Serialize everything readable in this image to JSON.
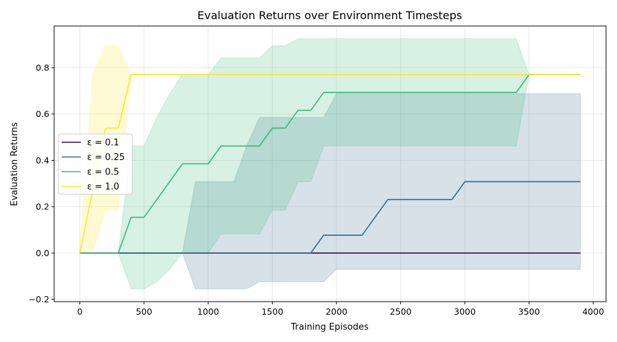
{
  "chart_data": {
    "type": "line",
    "title": "Evaluation Returns over Environment Timesteps",
    "xlabel": "Training Episodes",
    "ylabel": "Evaluation Returns",
    "xlim": [
      -200,
      4100
    ],
    "ylim": [
      -0.21,
      0.98
    ],
    "xticks": [
      0,
      500,
      1000,
      1500,
      2000,
      2500,
      3000,
      3500,
      4000
    ],
    "yticks": [
      -0.2,
      0.0,
      0.2,
      0.4,
      0.6,
      0.8
    ],
    "ytick_labels": [
      "−0.2",
      "0.0",
      "0.2",
      "0.4",
      "0.6",
      "0.8"
    ],
    "grid": true,
    "legend_position": "center-left",
    "x": [
      0,
      100,
      200,
      300,
      400,
      500,
      600,
      700,
      800,
      900,
      1000,
      1100,
      1200,
      1300,
      1400,
      1500,
      1600,
      1700,
      1800,
      1900,
      2000,
      2100,
      2200,
      2300,
      2400,
      2500,
      2600,
      2700,
      2800,
      2900,
      3000,
      3100,
      3200,
      3300,
      3400,
      3500,
      3600,
      3700,
      3800,
      3900
    ],
    "series": [
      {
        "name": "ε = 0.1",
        "color": "#440154",
        "values": [
          0,
          0,
          0,
          0,
          0,
          0,
          0,
          0,
          0,
          0,
          0,
          0,
          0,
          0,
          0,
          0,
          0,
          0,
          0,
          0,
          0,
          0,
          0,
          0,
          0,
          0,
          0,
          0,
          0,
          0,
          0,
          0,
          0,
          0,
          0,
          0,
          0,
          0,
          0,
          0
        ],
        "lower": [
          0,
          0,
          0,
          0,
          0,
          0,
          0,
          0,
          0,
          0,
          0,
          0,
          0,
          0,
          0,
          0,
          0,
          0,
          0,
          0,
          0,
          0,
          0,
          0,
          0,
          0,
          0,
          0,
          0,
          0,
          0,
          0,
          0,
          0,
          0,
          0,
          0,
          0,
          0,
          0
        ],
        "upper": [
          0,
          0,
          0,
          0,
          0,
          0,
          0,
          0,
          0,
          0,
          0,
          0,
          0,
          0,
          0,
          0,
          0,
          0,
          0,
          0,
          0,
          0,
          0,
          0,
          0,
          0,
          0,
          0,
          0,
          0,
          0,
          0,
          0,
          0,
          0,
          0,
          0,
          0,
          0,
          0
        ]
      },
      {
        "name": "ε = 0.25",
        "color": "#31688e",
        "values": [
          0,
          0,
          0,
          0,
          0,
          0,
          0,
          0,
          0,
          0,
          0,
          0,
          0,
          0,
          0,
          0,
          0,
          0,
          0,
          0.077,
          0.077,
          0.077,
          0.077,
          0.154,
          0.231,
          0.231,
          0.231,
          0.231,
          0.231,
          0.231,
          0.308,
          0.308,
          0.308,
          0.308,
          0.308,
          0.308,
          0.308,
          0.308,
          0.308,
          0.308
        ],
        "lower": [
          0,
          0,
          0,
          0,
          0,
          0,
          0,
          0,
          0,
          -0.155,
          -0.155,
          -0.155,
          -0.155,
          -0.155,
          -0.124,
          -0.124,
          -0.124,
          -0.124,
          -0.124,
          -0.124,
          -0.071,
          -0.071,
          -0.071,
          -0.071,
          -0.071,
          -0.071,
          -0.071,
          -0.071,
          -0.071,
          -0.071,
          -0.071,
          -0.071,
          -0.071,
          -0.071,
          -0.071,
          -0.071,
          -0.071,
          -0.071,
          -0.071,
          -0.071
        ],
        "upper": [
          0,
          0,
          0,
          0,
          0,
          0,
          0,
          0,
          0,
          0.308,
          0.308,
          0.308,
          0.308,
          0.462,
          0.585,
          0.585,
          0.585,
          0.585,
          0.585,
          0.585,
          0.688,
          0.688,
          0.688,
          0.688,
          0.688,
          0.688,
          0.688,
          0.688,
          0.688,
          0.688,
          0.688,
          0.688,
          0.688,
          0.688,
          0.688,
          0.688,
          0.688,
          0.688,
          0.688,
          0.688
        ]
      },
      {
        "name": "ε = 0.5",
        "color": "#35b779",
        "values": [
          0,
          0,
          0,
          0,
          0.154,
          0.154,
          0.231,
          0.308,
          0.385,
          0.385,
          0.385,
          0.462,
          0.462,
          0.462,
          0.462,
          0.539,
          0.539,
          0.616,
          0.616,
          0.693,
          0.693,
          0.693,
          0.693,
          0.693,
          0.693,
          0.693,
          0.693,
          0.693,
          0.693,
          0.693,
          0.693,
          0.693,
          0.693,
          0.693,
          0.693,
          0.77,
          0.77,
          0.77,
          0.77,
          0.77
        ],
        "lower": [
          0,
          0,
          0,
          0,
          -0.155,
          -0.155,
          -0.124,
          -0.071,
          0,
          0,
          0,
          0.082,
          0.082,
          0.082,
          0.082,
          0.185,
          0.185,
          0.308,
          0.308,
          0.462,
          0.462,
          0.462,
          0.462,
          0.462,
          0.462,
          0.462,
          0.462,
          0.462,
          0.462,
          0.462,
          0.462,
          0.462,
          0.462,
          0.462,
          0.462,
          0.77,
          0.77,
          0.77,
          0.77,
          0.77
        ],
        "upper": [
          0,
          0,
          0,
          0,
          0.462,
          0.462,
          0.585,
          0.688,
          0.77,
          0.77,
          0.77,
          0.842,
          0.842,
          0.842,
          0.842,
          0.895,
          0.895,
          0.925,
          0.925,
          0.925,
          0.925,
          0.925,
          0.925,
          0.925,
          0.925,
          0.925,
          0.925,
          0.925,
          0.925,
          0.925,
          0.925,
          0.925,
          0.925,
          0.925,
          0.925,
          0.77,
          0.77,
          0.77,
          0.77,
          0.77
        ]
      },
      {
        "name": "ε = 1.0",
        "color": "#fde725",
        "values": [
          0,
          0.27,
          0.539,
          0.539,
          0.77,
          0.77,
          0.77,
          0.77,
          0.77,
          0.77,
          0.77,
          0.77,
          0.77,
          0.77,
          0.77,
          0.77,
          0.77,
          0.77,
          0.77,
          0.77,
          0.77,
          0.77,
          0.77,
          0.77,
          0.77,
          0.77,
          0.77,
          0.77,
          0.77,
          0.77,
          0.77,
          0.77,
          0.77,
          0.77,
          0.77,
          0.77,
          0.77,
          0.77,
          0.77,
          0.77
        ],
        "lower": [
          0,
          0,
          0.185,
          0.185,
          0.77,
          0.77,
          0.77,
          0.77,
          0.77,
          0.77,
          0.77,
          0.77,
          0.77,
          0.77,
          0.77,
          0.77,
          0.77,
          0.77,
          0.77,
          0.77,
          0.77,
          0.77,
          0.77,
          0.77,
          0.77,
          0.77,
          0.77,
          0.77,
          0.77,
          0.77,
          0.77,
          0.77,
          0.77,
          0.77,
          0.77,
          0.77,
          0.77,
          0.77,
          0.77,
          0.77
        ],
        "upper": [
          0,
          0.77,
          0.895,
          0.895,
          0.77,
          0.77,
          0.77,
          0.77,
          0.77,
          0.77,
          0.77,
          0.77,
          0.77,
          0.77,
          0.77,
          0.77,
          0.77,
          0.77,
          0.77,
          0.77,
          0.77,
          0.77,
          0.77,
          0.77,
          0.77,
          0.77,
          0.77,
          0.77,
          0.77,
          0.77,
          0.77,
          0.77,
          0.77,
          0.77,
          0.77,
          0.77,
          0.77,
          0.77,
          0.77,
          0.77
        ]
      }
    ]
  }
}
